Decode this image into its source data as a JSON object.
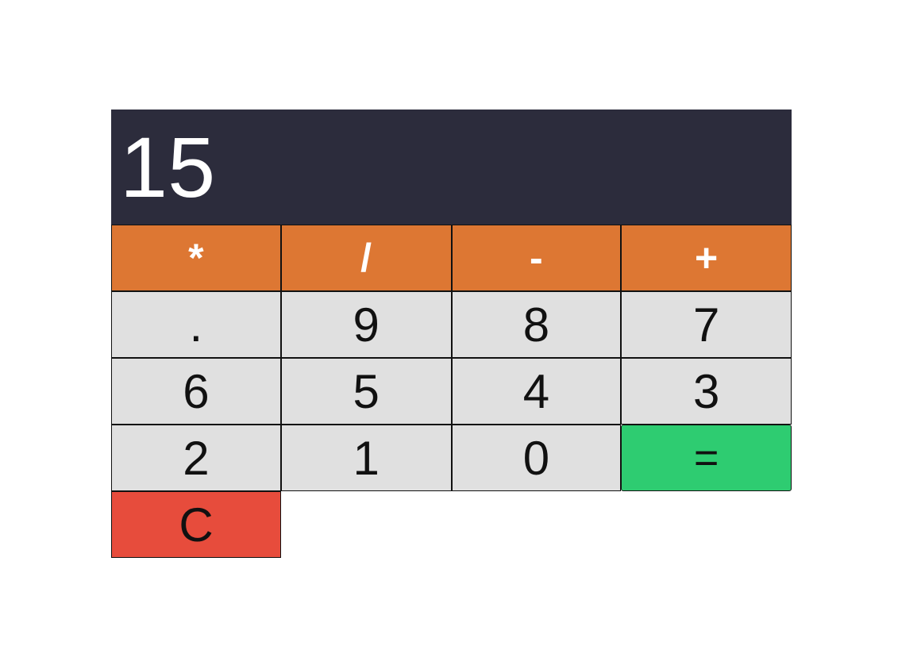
{
  "display": {
    "value": "15"
  },
  "keys": {
    "operators": [
      "*",
      "/",
      "-",
      "+"
    ],
    "row1": [
      ".",
      "9",
      "8",
      "7"
    ],
    "row2": [
      "6",
      "5",
      "4",
      "3"
    ],
    "row3": [
      "2",
      "1",
      "0"
    ],
    "equals": "=",
    "clear": "C"
  },
  "colors": {
    "display_bg": "#2c2c3c",
    "operator_bg": "#dd7733",
    "digit_bg": "#e0e0e0",
    "equals_bg": "#2ecc71",
    "clear_bg": "#e74c3c"
  }
}
